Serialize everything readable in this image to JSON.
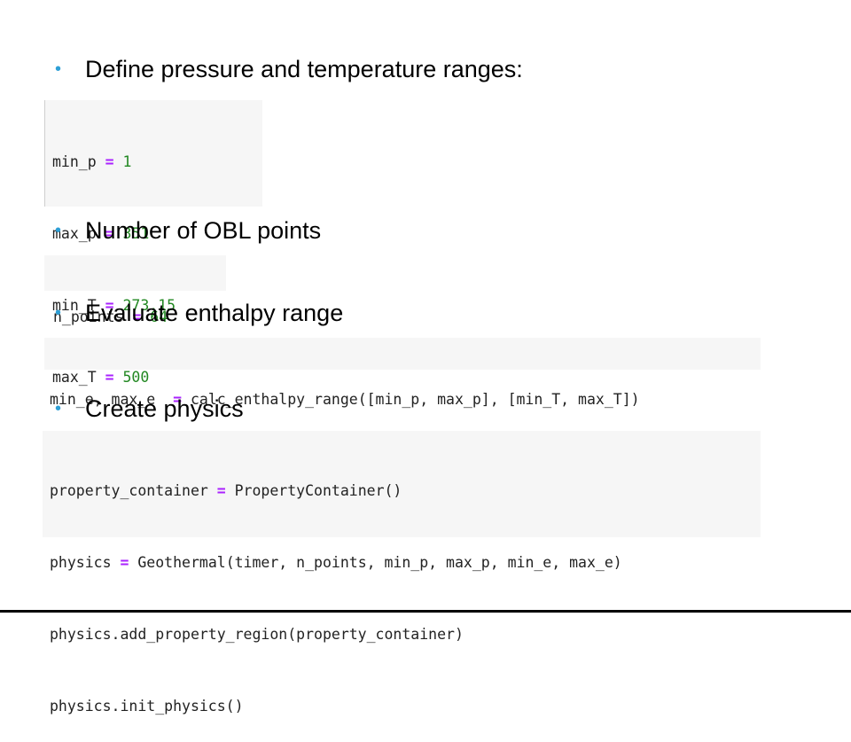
{
  "bullets": [
    "Define pressure and temperature ranges:",
    "Number of OBL points",
    "Evaluate enthalpy range",
    "Create physics"
  ],
  "bullet_color": "#2e9fd6",
  "code_blocks": {
    "ranges": {
      "lines": [
        {
          "name": "min_p",
          "op": "=",
          "value": "1"
        },
        {
          "name": "max_p",
          "op": "=",
          "value": "351"
        },
        {
          "name": "min_T",
          "op": "=",
          "value": "273.15"
        },
        {
          "name": "max_T",
          "op": "=",
          "value": "500"
        }
      ]
    },
    "points": {
      "name": "n_points",
      "op": "=",
      "value": "64"
    },
    "enthalpy": {
      "lhs": "min_e, max_e  ",
      "op": "=",
      "rhs": " calc_enthalpy_range([min_p, max_p], [min_T, max_T])"
    },
    "physics": {
      "line1_lhs": "property_container ",
      "line1_op": "=",
      "line1_rhs": " PropertyContainer()",
      "line2_lhs": "physics ",
      "line2_op": "=",
      "line2_rhs": " Geothermal(timer, n_points, min_p, max_p, min_e, max_e)",
      "line3": "physics.add_property_region(property_container)",
      "line4": "physics.init_physics()"
    }
  }
}
